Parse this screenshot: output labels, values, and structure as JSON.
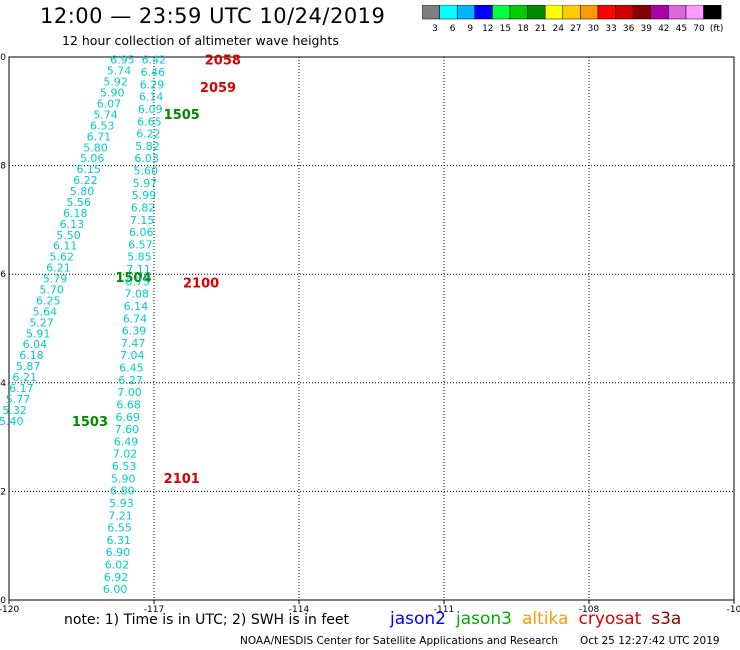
{
  "title": "12:00 — 23:59 UTC 10/24/2019",
  "subtitle": "12 hour collection of altimeter wave heights",
  "colorbar": {
    "colors": [
      "#7f7f7f",
      "#00ffff",
      "#00b4ff",
      "#0000ff",
      "#00ff44",
      "#00cc00",
      "#008800",
      "#ffff00",
      "#ffcc00",
      "#ff9900",
      "#ff0000",
      "#cc0000",
      "#880000",
      "#aa00aa",
      "#dd66dd",
      "#ff99ff",
      "#000000"
    ],
    "labels": [
      "3",
      "6",
      "9",
      "12",
      "15",
      "18",
      "21",
      "24",
      "27",
      "30",
      "33",
      "36",
      "39",
      "42",
      "45",
      "70",
      "(ft)"
    ]
  },
  "footer_note": "note:  1) Time is in UTC;  2) SWH is in feet",
  "satellites": [
    {
      "name": "jason2",
      "color": "#0000ff"
    },
    {
      "name": "jason3",
      "color": "#00aa00"
    },
    {
      "name": "altika",
      "color": "#ff9900"
    },
    {
      "name": "cryosat",
      "color": "#dd0000"
    },
    {
      "name": "s3a",
      "color": "#880000"
    }
  ],
  "credit": "NOAA/NESDIS Center for Satellite Applications and Research",
  "credit_time": "Oct 25 12:27:42 UTC 2019",
  "chart_data": {
    "type": "scatter",
    "xlim": [
      -120,
      -105
    ],
    "ylim": [
      0,
      10
    ],
    "x_ticks": [
      "-120",
      "-117",
      "-114",
      "-111",
      "-108",
      "-10"
    ],
    "y_ticks": [
      "0",
      "2",
      "4",
      "6",
      "8",
      "10"
    ],
    "grid": true,
    "series": [
      {
        "name": "jason3",
        "value_color": "#00cccc",
        "start": [
          -119.7,
          3.3
        ],
        "end": [
          -117.4,
          9.95
        ],
        "values": [
          "5.40",
          "5.32",
          "5.77",
          "6.17",
          "6.21",
          "5.87",
          "6.18",
          "6.04",
          "5.91",
          "5.27",
          "5.64",
          "6.25",
          "5.70",
          "5.79",
          "6.21",
          "5.62",
          "6.11",
          "5.50",
          "6.13",
          "6.18",
          "5.56",
          "5.80",
          "6.22",
          "6.15",
          "5.06",
          "5.80",
          "6.71",
          "6.53",
          "5.74",
          "6.07",
          "5.90",
          "5.92",
          "5.74",
          "6.95"
        ],
        "time_labels": [
          {
            "text": "1503",
            "x": -118.7,
            "y": 3.3
          },
          {
            "text": "1504",
            "x": -117.8,
            "y": 5.95
          },
          {
            "text": "1505",
            "x": -116.8,
            "y": 8.95
          }
        ],
        "time_color": "#008800"
      },
      {
        "name": "cryosat",
        "value_color": "#00cccc",
        "start": [
          -117.55,
          0.2
        ],
        "end": [
          -116.75,
          9.95
        ],
        "values": [
          "6.00",
          "6.92",
          "6.02",
          "6.90",
          "6.31",
          "6.55",
          "7.21",
          "5.93",
          "6.80",
          "5.90",
          "6.53",
          "7.02",
          "6.49",
          "7.60",
          "6.69",
          "6.68",
          "7.00",
          "6.27",
          "6.45",
          "7.04",
          "7.47",
          "6.39",
          "6.74",
          "6.14",
          "7.08",
          "6.75",
          "7.11",
          "5.85",
          "6.57",
          "6.06",
          "7.15",
          "6.82",
          "5.99",
          "5.97",
          "5.60",
          "6.03",
          "5.82",
          "6.22",
          "6.65",
          "6.09",
          "6.14",
          "6.29",
          "6.46",
          "6.42"
        ],
        "time_labels": [
          {
            "text": "2058",
            "x": -115.95,
            "y": 9.95
          },
          {
            "text": "2059",
            "x": -116.05,
            "y": 9.45
          },
          {
            "text": "2100",
            "x": -116.4,
            "y": 5.85
          },
          {
            "text": "2101",
            "x": -116.8,
            "y": 2.25
          }
        ],
        "time_color": "#dd0000"
      }
    ]
  }
}
